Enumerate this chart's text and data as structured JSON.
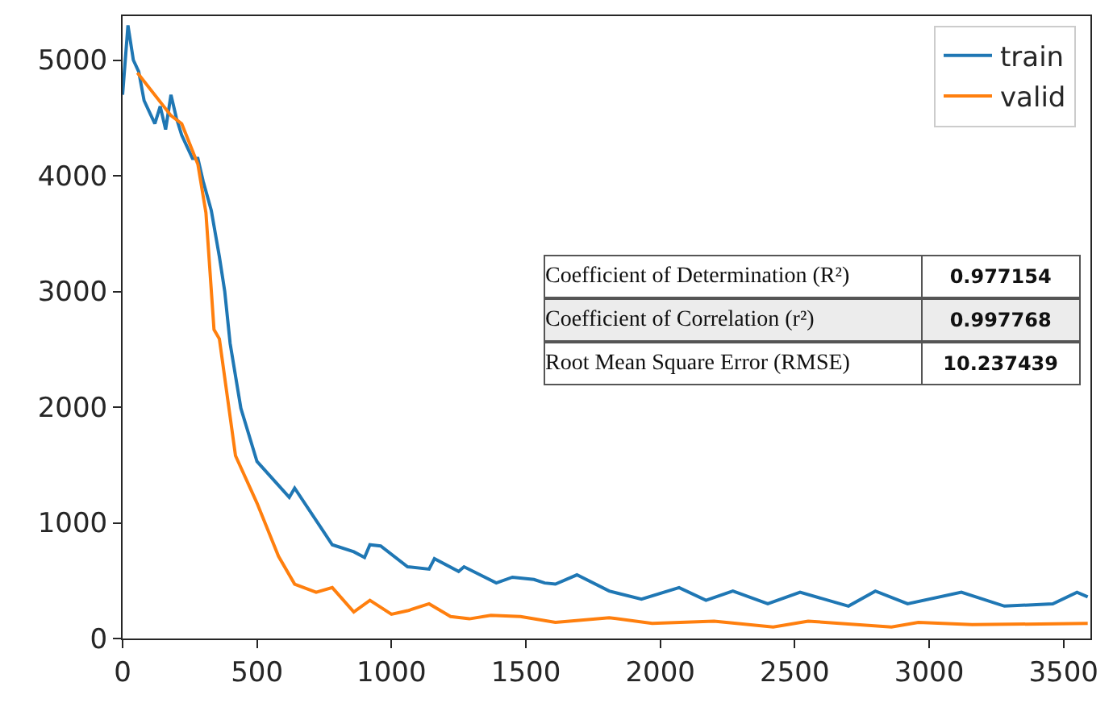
{
  "chart_data": {
    "type": "line",
    "xlim": [
      0,
      3600
    ],
    "ylim": [
      0,
      5380
    ],
    "xticks": [
      0,
      500,
      1000,
      1500,
      2000,
      2500,
      3000,
      3500
    ],
    "yticks": [
      0,
      1000,
      2000,
      3000,
      4000,
      5000
    ],
    "legend": "top right",
    "line_style": "solid",
    "marker": "none",
    "series": [
      {
        "name": "train",
        "color": "#1f77b4",
        "x": [
          0,
          20,
          40,
          60,
          80,
          100,
          120,
          140,
          160,
          180,
          200,
          220,
          240,
          260,
          280,
          300,
          330,
          360,
          380,
          400,
          440,
          500,
          620,
          640,
          740,
          780,
          860,
          900,
          920,
          960,
          1060,
          1140,
          1160,
          1250,
          1270,
          1390,
          1450,
          1530,
          1570,
          1610,
          1690,
          1810,
          1930,
          2070,
          2170,
          2270,
          2400,
          2520,
          2700,
          2800,
          2920,
          3120,
          3280,
          3460,
          3550,
          3590
        ],
        "values": [
          4700,
          5300,
          5000,
          4900,
          4650,
          4550,
          4450,
          4600,
          4400,
          4700,
          4500,
          4350,
          4250,
          4150,
          4150,
          3950,
          3700,
          3300,
          3000,
          2550,
          1990,
          1530,
          1220,
          1300,
          950,
          810,
          750,
          700,
          810,
          800,
          620,
          600,
          690,
          580,
          620,
          480,
          530,
          510,
          480,
          470,
          550,
          410,
          340,
          440,
          330,
          410,
          300,
          400,
          280,
          410,
          300,
          400,
          280,
          300,
          400,
          360
        ]
      },
      {
        "name": "valid",
        "color": "#ff7f0e",
        "x": [
          55,
          180,
          220,
          280,
          310,
          340,
          360,
          420,
          500,
          580,
          640,
          720,
          780,
          860,
          920,
          1000,
          1060,
          1140,
          1220,
          1290,
          1370,
          1480,
          1610,
          1810,
          1970,
          2200,
          2420,
          2550,
          2860,
          2960,
          3160,
          3590
        ],
        "values": [
          4890,
          4520,
          4450,
          4100,
          3680,
          2670,
          2590,
          1580,
          1170,
          710,
          470,
          400,
          440,
          230,
          330,
          210,
          240,
          300,
          190,
          170,
          200,
          190,
          140,
          180,
          130,
          150,
          100,
          150,
          100,
          140,
          120,
          130
        ]
      }
    ],
    "annotations": [
      "Coefficient of Determination (R²)",
      "0.977154",
      "Coefficient of Correlation (r²)",
      "0.997768",
      "Root Mean Square Error (RMSE)",
      "10.237439"
    ]
  }
}
